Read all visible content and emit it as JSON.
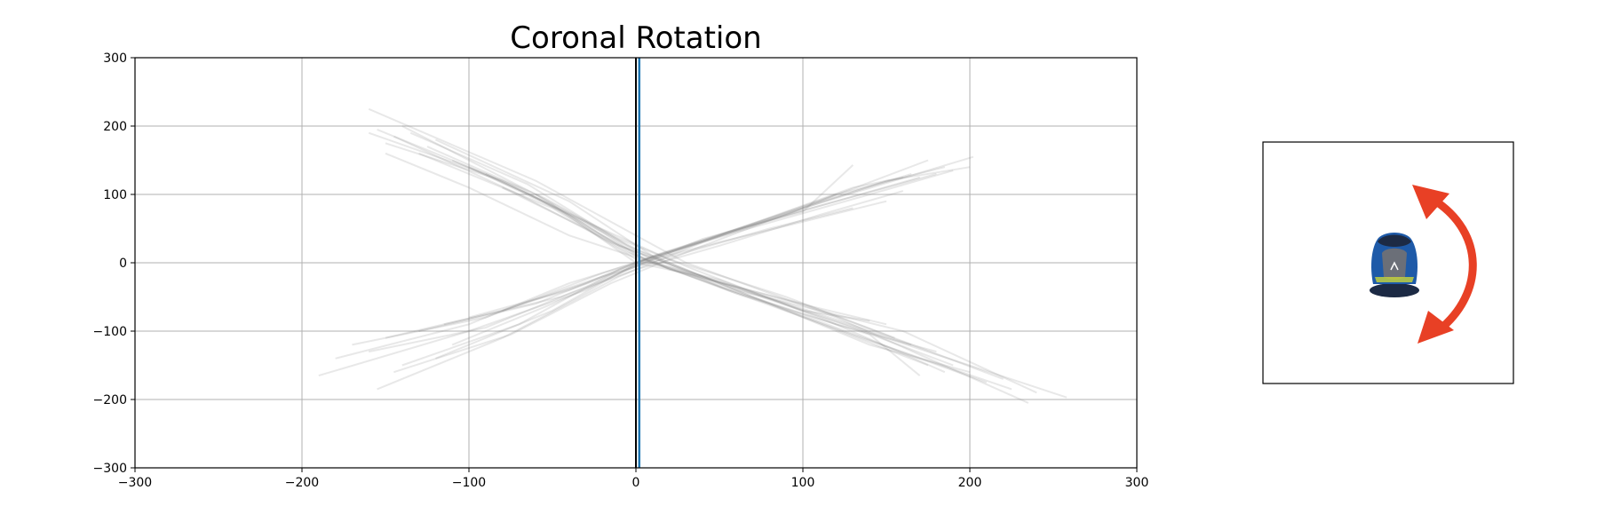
{
  "chart_data": {
    "type": "line",
    "title": "Coronal Rotation",
    "xlabel": "",
    "ylabel": "",
    "xlim": [
      -300,
      300
    ],
    "ylim": [
      -300,
      300
    ],
    "grid": true,
    "x_ticks": [
      -300,
      -200,
      -100,
      0,
      100,
      200,
      300
    ],
    "y_ticks": [
      -300,
      -200,
      -100,
      0,
      100,
      200,
      300
    ],
    "x_tick_labels": [
      "−300",
      "−200",
      "−100",
      "0",
      "100",
      "200",
      "300"
    ],
    "y_tick_labels": [
      "−300",
      "−200",
      "−100",
      "0",
      "100",
      "200",
      "300"
    ],
    "trace_color": "#808080",
    "series": [
      {
        "values": [
          [
            -160,
            225
          ],
          [
            -60,
            120
          ],
          [
            0,
            40
          ],
          [
            30,
            0
          ],
          [
            120,
            -80
          ],
          [
            235,
            -205
          ]
        ]
      },
      {
        "values": [
          [
            -155,
            195
          ],
          [
            -70,
            110
          ],
          [
            -10,
            25
          ],
          [
            40,
            -20
          ],
          [
            150,
            -110
          ],
          [
            258,
            -197
          ]
        ]
      },
      {
        "values": [
          [
            -150,
            175
          ],
          [
            -80,
            120
          ],
          [
            -20,
            45
          ],
          [
            20,
            -10
          ],
          [
            100,
            -60
          ],
          [
            220,
            -170
          ]
        ]
      },
      {
        "values": [
          [
            -140,
            200
          ],
          [
            -60,
            100
          ],
          [
            0,
            20
          ],
          [
            50,
            -30
          ],
          [
            140,
            -120
          ],
          [
            200,
            -160
          ]
        ]
      },
      {
        "values": [
          [
            -130,
            160
          ],
          [
            -50,
            80
          ],
          [
            -5,
            15
          ],
          [
            60,
            -40
          ],
          [
            160,
            -100
          ],
          [
            240,
            -190
          ]
        ]
      },
      {
        "values": [
          [
            -120,
            180
          ],
          [
            -40,
            90
          ],
          [
            10,
            10
          ],
          [
            70,
            -50
          ],
          [
            170,
            -140
          ],
          [
            210,
            -175
          ]
        ]
      },
      {
        "values": [
          [
            -145,
            185
          ],
          [
            -70,
            100
          ],
          [
            -15,
            30
          ],
          [
            45,
            -25
          ],
          [
            130,
            -95
          ],
          [
            190,
            -150
          ]
        ]
      },
      {
        "values": [
          [
            -100,
            140
          ],
          [
            -40,
            70
          ],
          [
            0,
            10
          ],
          [
            50,
            -35
          ],
          [
            120,
            -90
          ],
          [
            180,
            -130
          ]
        ]
      },
      {
        "values": [
          [
            -90,
            130
          ],
          [
            -30,
            60
          ],
          [
            5,
            5
          ],
          [
            60,
            -45
          ],
          [
            140,
            -105
          ],
          [
            170,
            -165
          ]
        ]
      },
      {
        "values": [
          [
            -110,
            150
          ],
          [
            -50,
            85
          ],
          [
            0,
            0
          ],
          [
            40,
            -20
          ],
          [
            110,
            -75
          ],
          [
            165,
            -120
          ]
        ]
      },
      {
        "values": [
          [
            -80,
            110
          ],
          [
            -30,
            50
          ],
          [
            0,
            5
          ],
          [
            30,
            -15
          ],
          [
            90,
            -55
          ],
          [
            150,
            -90
          ]
        ]
      },
      {
        "values": [
          [
            -160,
            190
          ],
          [
            -90,
            130
          ],
          [
            -30,
            60
          ],
          [
            20,
            5
          ],
          [
            90,
            -50
          ],
          [
            155,
            -110
          ]
        ]
      },
      {
        "values": [
          [
            -150,
            160
          ],
          [
            -100,
            110
          ],
          [
            -40,
            40
          ],
          [
            10,
            0
          ],
          [
            80,
            -60
          ],
          [
            175,
            -150
          ]
        ]
      },
      {
        "values": [
          [
            -60,
            100
          ],
          [
            -20,
            40
          ],
          [
            10,
            0
          ],
          [
            50,
            -25
          ],
          [
            100,
            -70
          ],
          [
            140,
            -85
          ]
        ]
      },
      {
        "values": [
          [
            -125,
            170
          ],
          [
            -55,
            95
          ],
          [
            -10,
            35
          ],
          [
            35,
            -10
          ],
          [
            115,
            -85
          ],
          [
            185,
            -160
          ]
        ]
      },
      {
        "values": [
          [
            -135,
            190
          ],
          [
            -65,
            115
          ],
          [
            -5,
            25
          ],
          [
            55,
            -40
          ],
          [
            135,
            -110
          ],
          [
            225,
            -185
          ]
        ]
      },
      {
        "values": [
          [
            -190,
            -165
          ],
          [
            -100,
            -100
          ],
          [
            -30,
            -40
          ],
          [
            10,
            10
          ],
          [
            100,
            80
          ],
          [
            202,
            155
          ]
        ]
      },
      {
        "values": [
          [
            -155,
            -185
          ],
          [
            -80,
            -110
          ],
          [
            -10,
            -20
          ],
          [
            40,
            30
          ],
          [
            120,
            100
          ],
          [
            185,
            140
          ]
        ]
      },
      {
        "values": [
          [
            -170,
            -120
          ],
          [
            -90,
            -80
          ],
          [
            -20,
            -15
          ],
          [
            30,
            25
          ],
          [
            110,
            90
          ],
          [
            175,
            150
          ]
        ]
      },
      {
        "values": [
          [
            -180,
            -140
          ],
          [
            -100,
            -90
          ],
          [
            -40,
            -30
          ],
          [
            20,
            15
          ],
          [
            90,
            70
          ],
          [
            180,
            130
          ]
        ]
      },
      {
        "values": [
          [
            -140,
            -150
          ],
          [
            -70,
            -90
          ],
          [
            -10,
            -10
          ],
          [
            50,
            40
          ],
          [
            130,
            110
          ],
          [
            160,
            125
          ]
        ]
      },
      {
        "values": [
          [
            -130,
            -100
          ],
          [
            -60,
            -60
          ],
          [
            0,
            0
          ],
          [
            60,
            45
          ],
          [
            140,
            100
          ],
          [
            190,
            135
          ]
        ]
      },
      {
        "values": [
          [
            -160,
            -130
          ],
          [
            -90,
            -95
          ],
          [
            -30,
            -35
          ],
          [
            40,
            35
          ],
          [
            100,
            75
          ],
          [
            130,
            143
          ]
        ]
      },
      {
        "values": [
          [
            -120,
            -140
          ],
          [
            -50,
            -70
          ],
          [
            5,
            5
          ],
          [
            70,
            55
          ],
          [
            150,
            120
          ],
          [
            200,
            140
          ]
        ]
      },
      {
        "values": [
          [
            -110,
            -120
          ],
          [
            -50,
            -60
          ],
          [
            0,
            -5
          ],
          [
            55,
            45
          ],
          [
            120,
            90
          ],
          [
            170,
            125
          ]
        ]
      },
      {
        "values": [
          [
            -100,
            -80
          ],
          [
            -40,
            -40
          ],
          [
            10,
            5
          ],
          [
            50,
            30
          ],
          [
            100,
            60
          ],
          [
            150,
            90
          ]
        ]
      },
      {
        "values": [
          [
            -80,
            -70
          ],
          [
            -30,
            -30
          ],
          [
            5,
            5
          ],
          [
            45,
            35
          ],
          [
            90,
            70
          ],
          [
            120,
            100
          ]
        ]
      },
      {
        "values": [
          [
            -150,
            -110
          ],
          [
            -80,
            -70
          ],
          [
            -20,
            -20
          ],
          [
            30,
            15
          ],
          [
            80,
            50
          ],
          [
            130,
            80
          ]
        ]
      },
      {
        "values": [
          [
            -145,
            -160
          ],
          [
            -75,
            -105
          ],
          [
            -15,
            -30
          ],
          [
            35,
            20
          ],
          [
            105,
            85
          ],
          [
            165,
            130
          ]
        ]
      },
      {
        "values": [
          [
            -115,
            -90
          ],
          [
            -45,
            -50
          ],
          [
            0,
            -10
          ],
          [
            50,
            25
          ],
          [
            110,
            70
          ],
          [
            160,
            105
          ]
        ]
      }
    ],
    "zero_line_color": "#000000",
    "reference_line": {
      "x": 2,
      "color": "#1f77b4"
    }
  },
  "inset": {
    "motion_description": "foot-rear-view-with-rotation-arrow",
    "shoe_colors": {
      "upper": "#1e5aa8",
      "dark": "#1c2a44",
      "heel": "#6b6f78",
      "accent": "#c9d63a"
    },
    "arrow_color": "#e84025"
  }
}
